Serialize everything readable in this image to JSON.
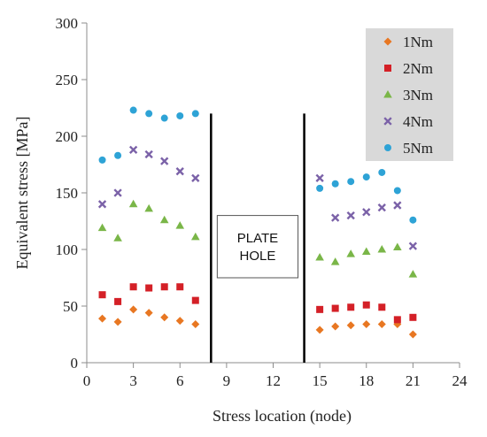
{
  "chart_data": {
    "type": "scatter",
    "xlabel": "Stress location (node)",
    "ylabel": "Equivalent stress [MPa]",
    "xlim": [
      0,
      24
    ],
    "ylim": [
      0,
      300
    ],
    "xticks": [
      0,
      3,
      6,
      9,
      12,
      15,
      18,
      21,
      24
    ],
    "yticks": [
      0,
      50,
      100,
      150,
      200,
      250,
      300
    ],
    "grid": false,
    "legend_position": "top-right",
    "series": [
      {
        "name": "1Nm",
        "color": "#E87722",
        "marker": "diamond",
        "points": [
          [
            1,
            39
          ],
          [
            2,
            36
          ],
          [
            3,
            47
          ],
          [
            4,
            44
          ],
          [
            5,
            40
          ],
          [
            6,
            37
          ],
          [
            7,
            34
          ],
          [
            15,
            29
          ],
          [
            16,
            32
          ],
          [
            17,
            33
          ],
          [
            18,
            34
          ],
          [
            19,
            34
          ],
          [
            20,
            34
          ],
          [
            21,
            25
          ]
        ]
      },
      {
        "name": "2Nm",
        "color": "#D42027",
        "marker": "square",
        "points": [
          [
            1,
            60
          ],
          [
            2,
            54
          ],
          [
            3,
            67
          ],
          [
            4,
            66
          ],
          [
            5,
            67
          ],
          [
            6,
            67
          ],
          [
            7,
            55
          ],
          [
            15,
            47
          ],
          [
            16,
            48
          ],
          [
            17,
            49
          ],
          [
            18,
            51
          ],
          [
            19,
            49
          ],
          [
            20,
            38
          ],
          [
            21,
            40
          ]
        ]
      },
      {
        "name": "3Nm",
        "color": "#7AB648",
        "marker": "triangle",
        "points": [
          [
            1,
            119
          ],
          [
            2,
            110
          ],
          [
            3,
            140
          ],
          [
            4,
            136
          ],
          [
            5,
            126
          ],
          [
            6,
            121
          ],
          [
            7,
            111
          ],
          [
            15,
            93
          ],
          [
            16,
            89
          ],
          [
            17,
            96
          ],
          [
            18,
            98
          ],
          [
            19,
            100
          ],
          [
            20,
            102
          ],
          [
            21,
            78
          ]
        ]
      },
      {
        "name": "4Nm",
        "color": "#7B62A8",
        "marker": "x",
        "points": [
          [
            1,
            140
          ],
          [
            2,
            150
          ],
          [
            3,
            188
          ],
          [
            4,
            184
          ],
          [
            5,
            178
          ],
          [
            6,
            169
          ],
          [
            7,
            163
          ],
          [
            15,
            163
          ],
          [
            16,
            128
          ],
          [
            17,
            130
          ],
          [
            18,
            133
          ],
          [
            19,
            137
          ],
          [
            20,
            139
          ],
          [
            21,
            103
          ]
        ]
      },
      {
        "name": "5Nm",
        "color": "#2EA3D6",
        "marker": "circle",
        "points": [
          [
            1,
            179
          ],
          [
            2,
            183
          ],
          [
            3,
            223
          ],
          [
            4,
            220
          ],
          [
            5,
            216
          ],
          [
            6,
            218
          ],
          [
            7,
            220
          ],
          [
            15,
            154
          ],
          [
            16,
            158
          ],
          [
            17,
            160
          ],
          [
            18,
            164
          ],
          [
            19,
            168
          ],
          [
            20,
            152
          ],
          [
            21,
            126
          ]
        ]
      }
    ],
    "vertical_lines_x": [
      8,
      14
    ],
    "annotation": {
      "lines": [
        "PLATE",
        "HOLE"
      ],
      "x_range": [
        8.4,
        13.6
      ],
      "y_range": [
        75,
        130
      ]
    }
  }
}
